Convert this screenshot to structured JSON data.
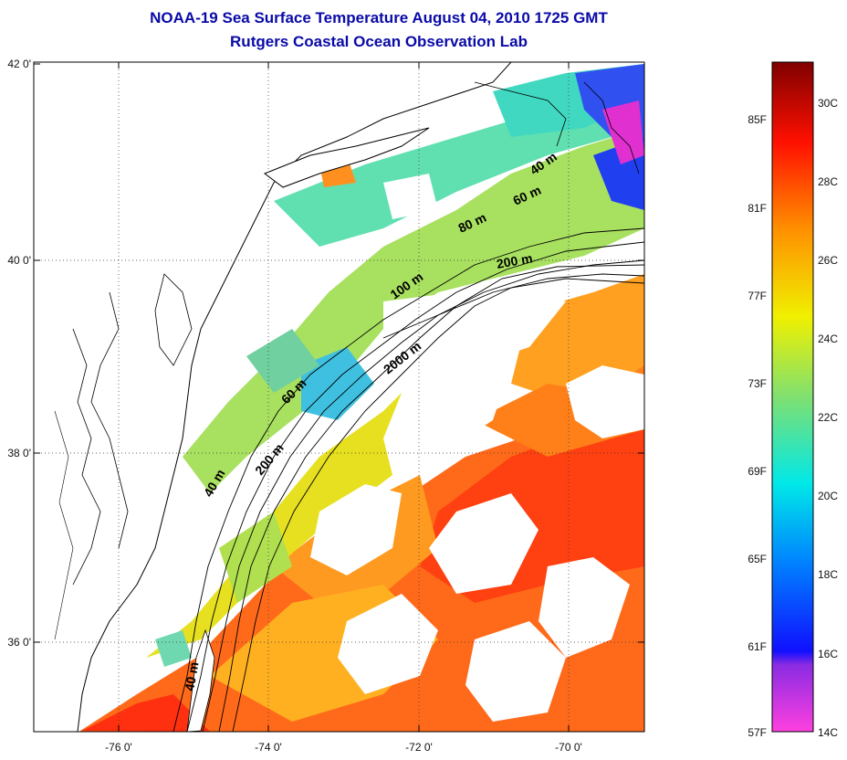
{
  "title": {
    "line1": "NOAA-19 Sea Surface Temperature August 04, 2010 1725 GMT",
    "line2": "Rutgers Coastal Ocean Observation Lab"
  },
  "axes": {
    "lon_labels": [
      "-76 0'",
      "-74 0'",
      "-72 0'",
      "-70 0'"
    ],
    "lat_labels": [
      "42 0'",
      "40 0'",
      "38 0'",
      "36 0'"
    ]
  },
  "contours": [
    "40 m",
    "60 m",
    "80 m",
    "200 m",
    "100 m",
    "2000 m",
    "60 m",
    "200 m",
    "40 m",
    "40 m"
  ],
  "colorbar": {
    "fahrenheit": [
      "85F",
      "81F",
      "77F",
      "73F",
      "69F",
      "65F",
      "61F",
      "57F"
    ],
    "celsius": [
      "30C",
      "28C",
      "26C",
      "24C",
      "22C",
      "20C",
      "18C",
      "16C",
      "14C"
    ]
  }
}
